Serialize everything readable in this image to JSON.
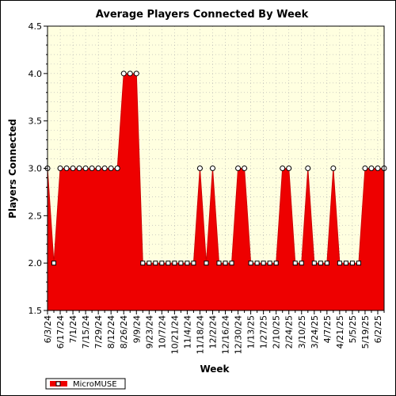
{
  "chart_data": {
    "type": "area",
    "title": "Average Players Connected By Week",
    "xlabel": "Week",
    "ylabel": "Players Connected",
    "ylim": [
      1.5,
      4.5
    ],
    "yticks": [
      "1.5",
      "2.0",
      "2.5",
      "3.0",
      "3.5",
      "4.0",
      "4.5"
    ],
    "ytick_values": [
      1.5,
      2.0,
      2.5,
      3.0,
      3.5,
      4.0,
      4.5
    ],
    "grid": true,
    "legend_placement": "bottom-left",
    "x": [
      "6/3/24",
      "6/10/24",
      "6/17/24",
      "6/24/24",
      "7/1/24",
      "7/8/24",
      "7/15/24",
      "7/22/24",
      "7/29/24",
      "8/5/24",
      "8/12/24",
      "8/19/24",
      "8/26/24",
      "9/2/24",
      "9/9/24",
      "9/16/24",
      "9/23/24",
      "9/30/24",
      "10/7/24",
      "10/14/24",
      "10/21/24",
      "10/28/24",
      "11/4/24",
      "11/11/24",
      "11/18/24",
      "11/25/24",
      "12/2/24",
      "12/9/24",
      "12/16/24",
      "12/23/24",
      "12/30/24",
      "1/6/25",
      "1/13/25",
      "1/20/25",
      "1/27/25",
      "2/3/25",
      "2/10/25",
      "2/17/25",
      "2/24/25",
      "3/3/25",
      "3/10/25",
      "3/17/25",
      "3/24/25",
      "3/31/25",
      "4/7/25",
      "4/14/25",
      "4/21/25",
      "4/28/25",
      "5/5/25",
      "5/12/25",
      "5/19/25",
      "5/26/25",
      "6/2/25",
      "6/9/25"
    ],
    "xtick_labels": [
      "6/3/24",
      "6/17/24",
      "7/1/24",
      "7/15/24",
      "7/29/24",
      "8/12/24",
      "8/26/24",
      "9/9/24",
      "9/23/24",
      "10/7/24",
      "10/21/24",
      "11/4/24",
      "11/18/24",
      "12/2/24",
      "12/16/24",
      "12/30/24",
      "1/13/25",
      "1/27/25",
      "2/10/25",
      "2/24/25",
      "3/10/25",
      "3/24/25",
      "4/7/25",
      "4/21/25",
      "5/5/25",
      "5/19/25",
      "6/2/25"
    ],
    "series": [
      {
        "name": "MicroMUSE",
        "values": [
          3,
          2,
          3,
          3,
          3,
          3,
          3,
          3,
          3,
          3,
          3,
          3,
          4,
          4,
          4,
          2,
          2,
          2,
          2,
          2,
          2,
          2,
          2,
          2,
          3,
          2,
          3,
          2,
          2,
          2,
          3,
          3,
          2,
          2,
          2,
          2,
          2,
          3,
          3,
          2,
          2,
          3,
          2,
          2,
          2,
          3,
          2,
          2,
          2,
          2,
          3,
          3,
          3,
          3
        ]
      }
    ],
    "colors": {
      "fill": "#ee0000",
      "line": "#cc0000",
      "marker_fill": "#ffffff",
      "plot_background": "#ffffe0"
    }
  }
}
